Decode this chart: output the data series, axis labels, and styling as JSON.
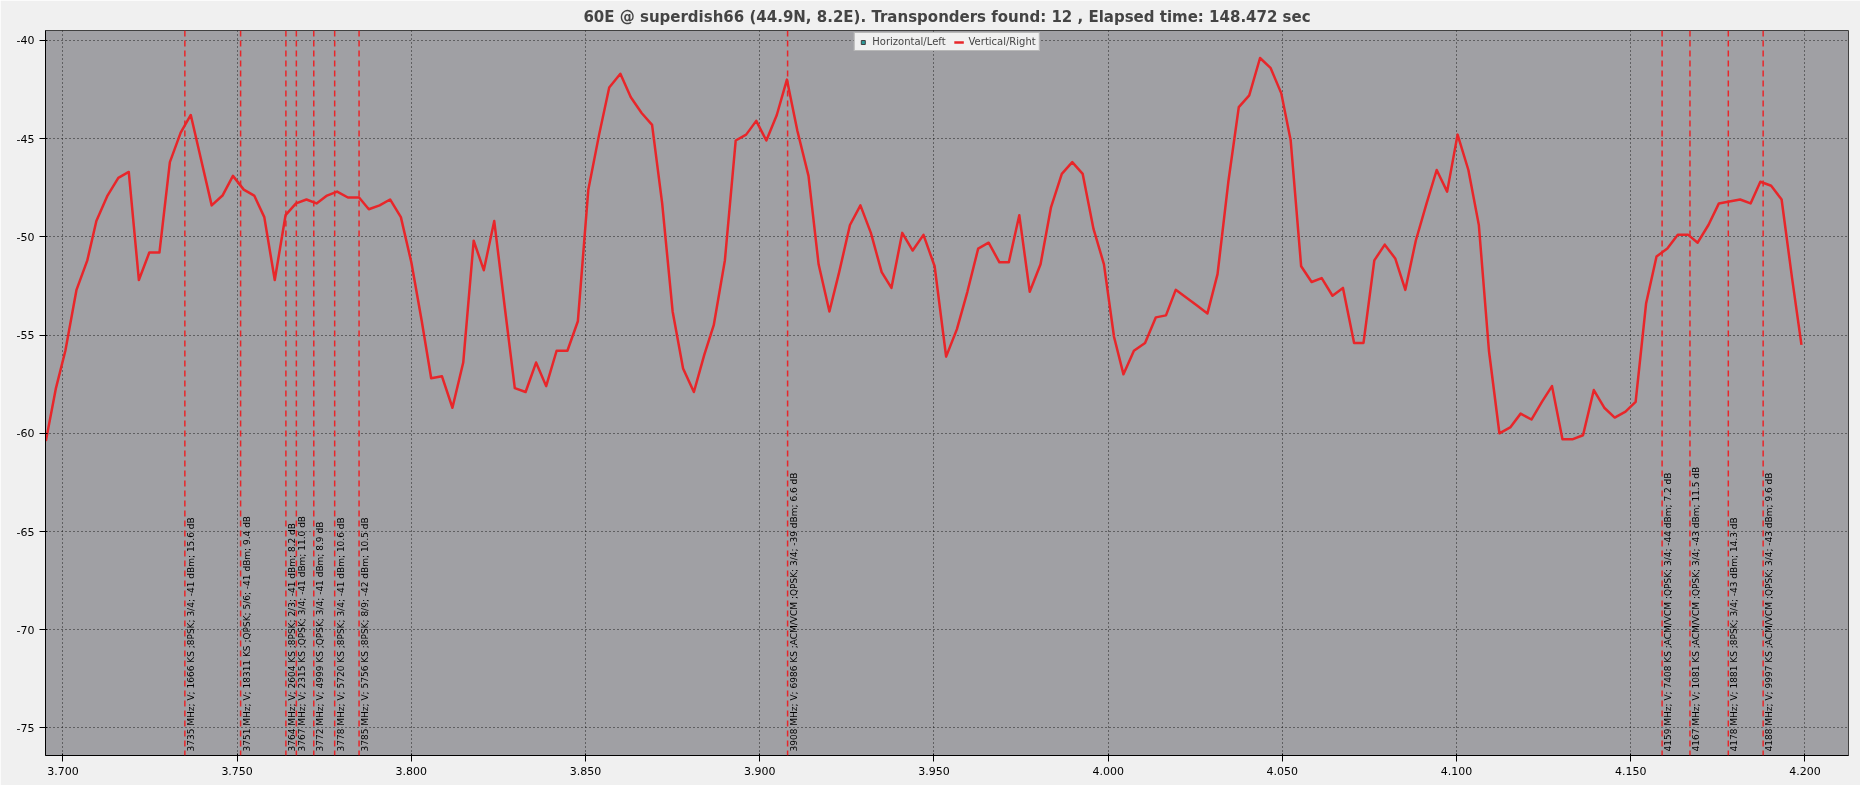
{
  "chart_data": {
    "type": "line",
    "title": "60E @ superdish66 (44.9N, 8.2E). Transponders found: 12 , Elapsed time: 148.472 sec",
    "series": [
      {
        "name": "Horizontal/Left",
        "color": "#2e9a9a"
      },
      {
        "name": "Vertical/Right",
        "color": "#e8262a",
        "x": [
          3.6951,
          3.698,
          3.7007,
          3.7039,
          3.707,
          3.7096,
          3.7128,
          3.7159,
          3.7189,
          3.7218,
          3.7248,
          3.7277,
          3.7307,
          3.7338,
          3.7367,
          3.7397,
          3.7427,
          3.7458,
          3.7488,
          3.7519,
          3.7549,
          3.7578,
          3.7608,
          3.7639,
          3.7669,
          3.7699,
          3.7728,
          3.7758,
          3.7787,
          3.7818,
          3.785,
          3.7878,
          3.7909,
          3.7939,
          3.797,
          3.8,
          3.803,
          3.8057,
          3.8088,
          3.8118,
          3.8149,
          3.8179,
          3.8208,
          3.8238,
          3.8269,
          3.8297,
          3.8328,
          3.8358,
          3.8387,
          3.8417,
          3.8448,
          3.8478,
          3.8508,
          3.8539,
          3.8568,
          3.86,
          3.863,
          3.8661,
          3.8691,
          3.872,
          3.875,
          3.878,
          3.8811,
          3.8841,
          3.8868,
          3.89,
          3.8931,
          3.8961,
          3.899,
          3.9019,
          3.9049,
          3.9078,
          3.9108,
          3.914,
          3.9169,
          3.92,
          3.9228,
          3.9259,
          3.9289,
          3.9319,
          3.935,
          3.9378,
          3.9409,
          3.9439,
          3.947,
          3.9502,
          3.9535,
          3.9566,
          3.9596,
          3.9627,
          3.9657,
          3.9688,
          3.9715,
          3.9745,
          3.9775,
          3.9806,
          3.9836,
          3.9867,
          3.9897,
          3.9927,
          3.9958,
          3.9988,
          4.0017,
          4.0044,
          4.0074,
          4.0106,
          4.0137,
          4.0166,
          4.0194,
          4.0225,
          4.0255,
          4.0285,
          4.0314,
          4.0345,
          4.0375,
          4.0405,
          4.0436,
          4.0466,
          4.0497,
          4.0524,
          4.0554,
          4.0584,
          4.0613,
          4.0644,
          4.0674,
          4.0706,
          4.0733,
          4.0764,
          4.0794,
          4.0824,
          4.0853,
          4.0883,
          4.0914,
          4.0943,
          4.0973,
          4.1003,
          4.1034,
          4.1064,
          4.1093,
          4.1123,
          4.1154,
          4.1184,
          4.1215,
          4.1245,
          4.1274,
          4.1304,
          4.1334,
          4.1363,
          4.1394,
          4.1424,
          4.1454,
          4.1485,
          4.1514,
          4.1544,
          4.1574,
          4.1605,
          4.1635,
          4.1665,
          4.1692,
          4.1723,
          4.1753,
          4.1783,
          4.1814,
          4.1844,
          4.1872,
          4.1903,
          4.1933,
          4.1963,
          4.199
        ],
        "values": [
          -60.4,
          -57.7,
          -55.8,
          -52.7,
          -51.2,
          -49.2,
          -47.9,
          -47.0,
          -46.7,
          -52.2,
          -50.8,
          -50.8,
          -46.2,
          -44.7,
          -43.8,
          -46.1,
          -48.4,
          -47.9,
          -46.9,
          -47.6,
          -47.9,
          -49.0,
          -52.2,
          -48.9,
          -48.3,
          -48.1,
          -48.3,
          -47.9,
          -47.7,
          -48.0,
          -48.0,
          -48.6,
          -48.4,
          -48.1,
          -49.0,
          -51.3,
          -54.3,
          -57.2,
          -57.1,
          -58.7,
          -56.4,
          -50.2,
          -51.7,
          -49.2,
          -53.7,
          -57.7,
          -57.9,
          -56.4,
          -57.6,
          -55.8,
          -55.8,
          -54.3,
          -47.6,
          -44.8,
          -42.4,
          -41.7,
          -42.9,
          -43.7,
          -44.3,
          -48.3,
          -53.8,
          -56.7,
          -57.9,
          -56.0,
          -54.5,
          -51.2,
          -45.1,
          -44.8,
          -44.1,
          -45.1,
          -43.8,
          -42.0,
          -44.6,
          -46.9,
          -51.4,
          -53.8,
          -51.8,
          -49.4,
          -48.4,
          -49.8,
          -51.8,
          -52.6,
          -49.8,
          -50.7,
          -49.9,
          -51.5,
          -56.1,
          -54.7,
          -52.8,
          -50.6,
          -50.3,
          -51.3,
          -51.3,
          -48.9,
          -52.8,
          -51.4,
          -48.5,
          -46.8,
          -46.2,
          -46.8,
          -49.6,
          -51.4,
          -55.1,
          -57.0,
          -55.8,
          -55.4,
          -54.1,
          -54.0,
          -52.7,
          -53.1,
          -53.5,
          -53.9,
          -51.9,
          -47.2,
          -43.4,
          -42.8,
          -40.9,
          -41.4,
          -42.7,
          -45.1,
          -51.5,
          -52.3,
          -52.1,
          -53.0,
          -52.6,
          -55.4,
          -55.4,
          -51.2,
          -50.4,
          -51.1,
          -52.7,
          -50.2,
          -48.3,
          -46.6,
          -47.7,
          -44.8,
          -46.6,
          -49.4,
          -55.8,
          -60.0,
          -59.7,
          -59.0,
          -59.3,
          -58.4,
          -57.6,
          -60.3,
          -60.3,
          -60.1,
          -57.8,
          -58.7,
          -59.2,
          -58.9,
          -58.4,
          -53.4,
          -51.0,
          -50.6,
          -49.9,
          -49.9,
          -50.3,
          -49.4,
          -48.3,
          -48.2,
          -48.1,
          -48.3,
          -47.2,
          -47.4,
          -48.1,
          -52.1,
          -55.5
        ]
      }
    ],
    "xlim": [
      3.695,
      4.2125
    ],
    "ylim": [
      -76.4,
      -39.5
    ],
    "xticks": [
      {
        "value": 3.7,
        "label": "3.700"
      },
      {
        "value": 3.75,
        "label": "3.750"
      },
      {
        "value": 3.8,
        "label": "3.800"
      },
      {
        "value": 3.85,
        "label": "3.850"
      },
      {
        "value": 3.9,
        "label": "3.900"
      },
      {
        "value": 3.95,
        "label": "3.950"
      },
      {
        "value": 4.0,
        "label": "4.000"
      },
      {
        "value": 4.05,
        "label": "4.050"
      },
      {
        "value": 4.1,
        "label": "4.100"
      },
      {
        "value": 4.15,
        "label": "4.150"
      },
      {
        "value": 4.2,
        "label": "4.200"
      }
    ],
    "yticks": [
      -40,
      -45,
      -50,
      -55,
      -60,
      -65,
      -70,
      -75
    ],
    "ref_lines": [
      {
        "axis": "x",
        "value": 3.735,
        "label": "3735 MHz; V; 1666 KS ;8PSK; 3/4; -41 dBm; 15.6 dB",
        "color": "#e8262a",
        "line_style": "dashed"
      },
      {
        "axis": "x",
        "value": 3.751,
        "label": "3751 MHz; V; 18311 KS ;QPSK; 5/6; -41 dBm; 9.4 dB",
        "color": "#e8262a",
        "line_style": "dashed"
      },
      {
        "axis": "x",
        "value": 3.764,
        "label": "3764 MHz; V; 2604 KS ;8PSK; 2/3; -41 dBm; 8.2 dB",
        "color": "#e8262a",
        "line_style": "dashed"
      },
      {
        "axis": "x",
        "value": 3.767,
        "label": "3767 MHz; V; 2315 KS ;QPSK; 3/4; -41 dBm; 11.0 dB",
        "color": "#e8262a",
        "line_style": "dashed"
      },
      {
        "axis": "x",
        "value": 3.772,
        "label": "3772 MHz; V; 4999 KS ;QPSK; 3/4; -41 dBm; 8.9 dB",
        "color": "#e8262a",
        "line_style": "dashed"
      },
      {
        "axis": "x",
        "value": 3.778,
        "label": "3778 MHz; V; 5720 KS ;8PSK; 3/4; -41 dBm; 10.6 dB",
        "color": "#e8262a",
        "line_style": "dashed"
      },
      {
        "axis": "x",
        "value": 3.785,
        "label": "3785 MHz; V; 5756 KS ;8PSK; 8/9; -42 dBm; 10.5 dB",
        "color": "#e8262a",
        "line_style": "dashed"
      },
      {
        "axis": "x",
        "value": 3.908,
        "label": "3908 MHz; V; 6986 KS ;ACM/VCM ;QPSK; 3/4; -39 dBm; 6.6 dB",
        "color": "#e8262a",
        "line_style": "dashed"
      },
      {
        "axis": "x",
        "value": 4.159,
        "label": "4159 MHz; V; 7408 KS ;ACM/VCM ;QPSK; 3/4; -44 dBm; 7.2 dB",
        "color": "#e8262a",
        "line_style": "dashed"
      },
      {
        "axis": "x",
        "value": 4.167,
        "label": "4167 MHz; V; 1081 KS ;ACM/VCM ;QPSK; 3/4; -43 dBm; 11.5 dB",
        "color": "#e8262a",
        "line_style": "dashed"
      },
      {
        "axis": "x",
        "value": 4.178,
        "label": "4178 MHz; V; 1881 KS ;8PSK; 3/4; -43 dBm; 14.3 dB",
        "color": "#e8262a",
        "line_style": "dashed"
      },
      {
        "axis": "x",
        "value": 4.188,
        "label": "4188 MHz; V; 9997 KS ;ACM/VCM ;QPSK; 3/4; -43 dBm; 9.6 dB",
        "color": "#e8262a",
        "line_style": "dashed"
      }
    ],
    "grid": true,
    "legend": "top",
    "line_style": "solid"
  }
}
